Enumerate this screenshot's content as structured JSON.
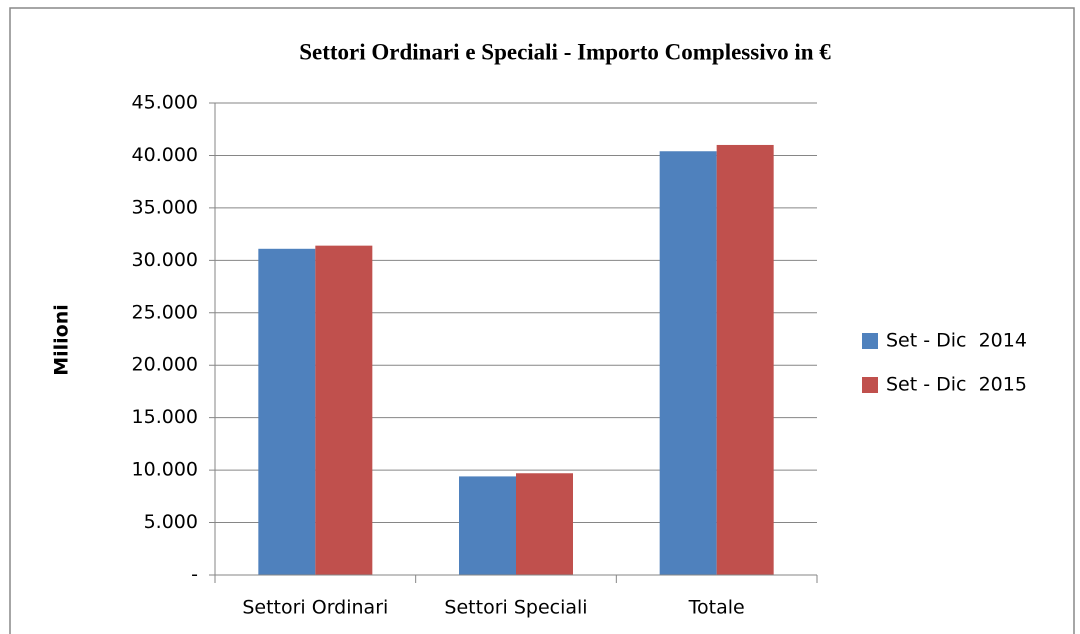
{
  "chart_data": {
    "type": "bar",
    "title": "Settori Ordinari e Speciali - Importo Complessivo in €",
    "y_label": "Milioni",
    "categories": [
      "Settori Ordinari",
      "Settori Speciali",
      "Totale"
    ],
    "series": [
      {
        "name": "Set - Dic  2014",
        "color": "#4f81bd",
        "values": [
          31100,
          9400,
          40400
        ]
      },
      {
        "name": "Set - Dic  2015",
        "color": "#c0504d",
        "values": [
          31400,
          9700,
          41000
        ]
      }
    ],
    "ylim": [
      0,
      45000
    ],
    "yticks": [
      {
        "value": 0,
        "label": "-"
      },
      {
        "value": 5000,
        "label": "5.000"
      },
      {
        "value": 10000,
        "label": "10.000"
      },
      {
        "value": 15000,
        "label": "15.000"
      },
      {
        "value": 20000,
        "label": "20.000"
      },
      {
        "value": 25000,
        "label": "25.000"
      },
      {
        "value": 30000,
        "label": "30.000"
      },
      {
        "value": 35000,
        "label": "35.000"
      },
      {
        "value": 40000,
        "label": "40.000"
      },
      {
        "value": 45000,
        "label": "45.000"
      }
    ],
    "grid": true,
    "legend": "right"
  }
}
